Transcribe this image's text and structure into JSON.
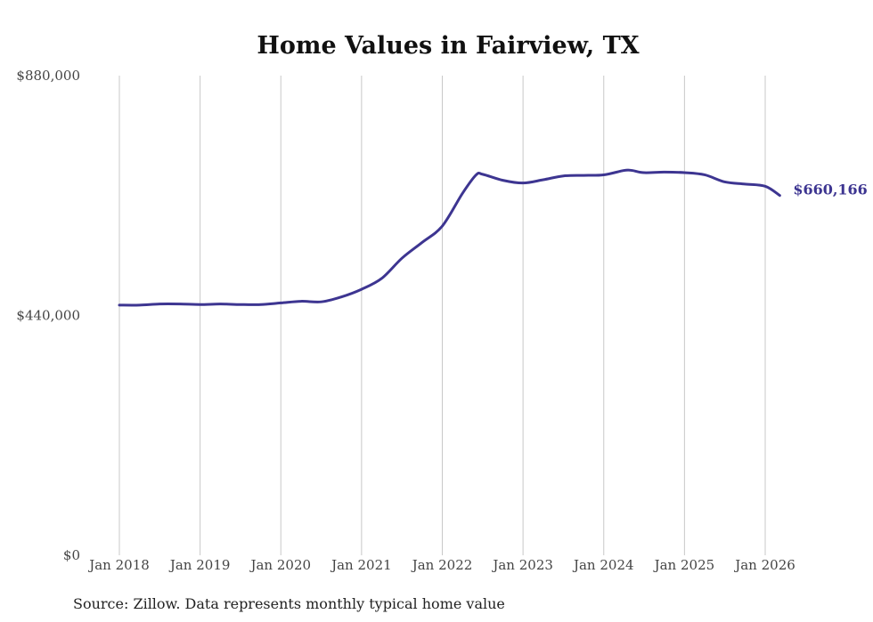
{
  "chart_data": {
    "type": "line",
    "title": "Home Values in Fairview, TX",
    "xlabel": "",
    "ylabel": "",
    "ylim": [
      0,
      880000
    ],
    "yticks": [
      {
        "value": 0,
        "label": "$0"
      },
      {
        "value": 440000,
        "label": "$440,000"
      },
      {
        "value": 880000,
        "label": "$880,000"
      }
    ],
    "xrange": [
      2018.0,
      2026.18
    ],
    "xticks": [
      {
        "value": 2018,
        "label": "Jan 2018"
      },
      {
        "value": 2019,
        "label": "Jan 2019"
      },
      {
        "value": 2020,
        "label": "Jan 2020"
      },
      {
        "value": 2021,
        "label": "Jan 2021"
      },
      {
        "value": 2022,
        "label": "Jan 2022"
      },
      {
        "value": 2023,
        "label": "Jan 2023"
      },
      {
        "value": 2024,
        "label": "Jan 2024"
      },
      {
        "value": 2025,
        "label": "Jan 2025"
      },
      {
        "value": 2026,
        "label": "Jan 2026"
      }
    ],
    "grid": "vertical",
    "series": [
      {
        "name": "Typical home value",
        "color": "#3d3591",
        "end_label": "$660,166",
        "x": [
          2018.0,
          2018.25,
          2018.5,
          2018.75,
          2019.0,
          2019.25,
          2019.5,
          2019.75,
          2020.0,
          2020.25,
          2020.5,
          2020.75,
          2021.0,
          2021.25,
          2021.5,
          2021.75,
          2022.0,
          2022.25,
          2022.42,
          2022.5,
          2022.75,
          2023.0,
          2023.25,
          2023.5,
          2023.75,
          2024.0,
          2024.25,
          2024.35,
          2024.5,
          2024.75,
          2025.0,
          2025.25,
          2025.5,
          2025.75,
          2026.0,
          2026.18
        ],
        "values": [
          459000,
          459000,
          461000,
          461000,
          460000,
          461000,
          460000,
          460000,
          463000,
          466000,
          465000,
          474000,
          488000,
          508000,
          545000,
          574000,
          604000,
          664000,
          698000,
          699000,
          688000,
          683000,
          689000,
          696000,
          697000,
          698000,
          706000,
          706000,
          702000,
          703000,
          702000,
          698000,
          685000,
          681000,
          677000,
          660166
        ]
      }
    ]
  },
  "source_note": "Source: Zillow. Data represents monthly typical home value"
}
